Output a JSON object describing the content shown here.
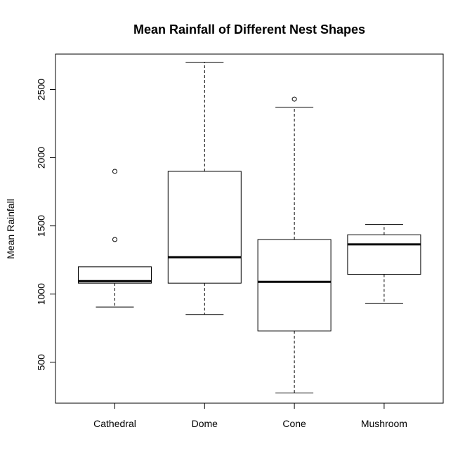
{
  "chart_data": {
    "type": "boxplot",
    "title": "Mean Rainfall of Different Nest Shapes",
    "xlabel": "",
    "ylabel": "Mean Rainfall",
    "categories": [
      "Cathedral",
      "Dome",
      "Cone",
      "Mushroom"
    ],
    "ylim": [
      200,
      2760
    ],
    "yticks": [
      500,
      1000,
      1500,
      2000,
      2500
    ],
    "ytick_labels": [
      "500",
      "1000",
      "1500",
      "2000",
      "2500"
    ],
    "grid": false,
    "legend": "none",
    "boxes": [
      {
        "category": "Cathedral",
        "whisker_low": 905,
        "q1": 1080,
        "median": 1095,
        "q3": 1200,
        "whisker_high": 1200,
        "outliers": [
          1400,
          1900
        ]
      },
      {
        "category": "Dome",
        "whisker_low": 850,
        "q1": 1080,
        "median": 1270,
        "q3": 1900,
        "whisker_high": 2700,
        "outliers": []
      },
      {
        "category": "Cone",
        "whisker_low": 275,
        "q1": 730,
        "median": 1090,
        "q3": 1400,
        "whisker_high": 2370,
        "outliers": [
          2430
        ]
      },
      {
        "category": "Mushroom",
        "whisker_low": 930,
        "q1": 1145,
        "median": 1365,
        "q3": 1435,
        "whisker_high": 1510,
        "outliers": []
      }
    ]
  }
}
